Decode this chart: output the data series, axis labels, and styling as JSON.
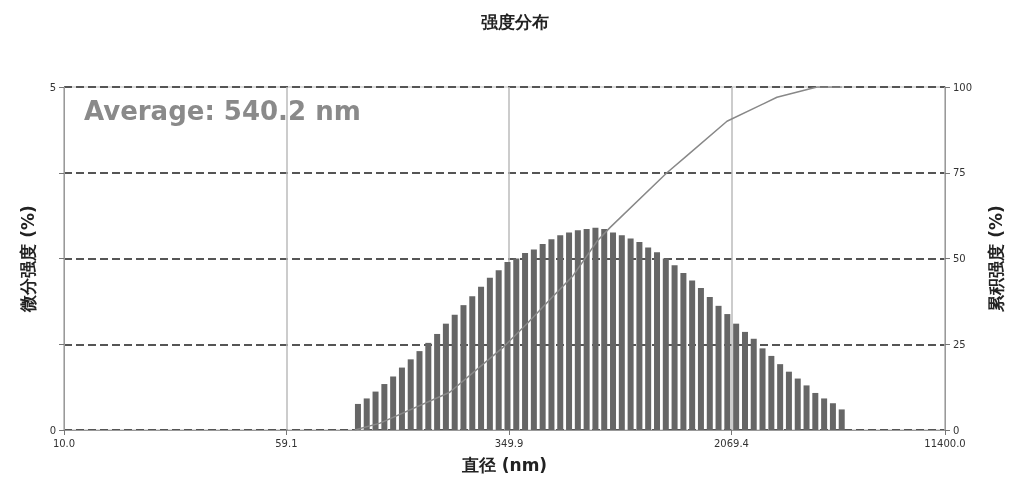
{
  "chart_data": {
    "type": "bar",
    "title": "强度分布",
    "xlabel": "直径 (nm)",
    "ylabel": "微分强度 (%)",
    "y2label": "累积强度 (%)",
    "annotations": [
      "Average: 540.2 nm"
    ],
    "log": "x",
    "grid": true,
    "legend": false,
    "xlim": [
      10,
      11400
    ],
    "xticks": [
      {
        "value": 10,
        "label": "10.0"
      },
      59.1,
      349.9,
      2069.4,
      {
        "value": 11400,
        "label": "11400.0"
      }
    ],
    "ylim": [
      0,
      5
    ],
    "yticks": [
      0,
      {
        "value": 1.25,
        "label": null
      },
      {
        "value": 2.5,
        "label": null
      },
      {
        "value": 3.75,
        "label": null
      },
      5
    ],
    "y2lim": [
      0,
      100
    ],
    "y2ticks": [
      0,
      25,
      50,
      75,
      100
    ],
    "series": [
      {
        "color": "#666666",
        "x": [
          104.7,
          112.3,
          120.5,
          129.3,
          138.7,
          148.8,
          159.6,
          171.2,
          183.7,
          197.1,
          211.4,
          226.8,
          243.3,
          261.0,
          280.0,
          300.4,
          322.3,
          345.8,
          370.9,
          397.9,
          426.9,
          458.0,
          491.3,
          527.1,
          565.5,
          606.6,
          650.8,
          698.2,
          749.0,
          803.5,
          862.0,
          924.8,
          992.1,
          1064,
          1142,
          1225,
          1314,
          1410,
          1512,
          1622,
          1741,
          1867,
          2003,
          2149,
          2306,
          2473,
          2653,
          2847,
          3054,
          3276,
          3515,
          3771,
          4045,
          4340,
          4656,
          4995
        ],
        "values": [
          0.38,
          0.46,
          0.56,
          0.67,
          0.78,
          0.91,
          1.03,
          1.15,
          1.27,
          1.4,
          1.55,
          1.68,
          1.82,
          1.95,
          2.09,
          2.22,
          2.33,
          2.45,
          2.5,
          2.58,
          2.63,
          2.71,
          2.78,
          2.84,
          2.88,
          2.91,
          2.93,
          2.95,
          2.93,
          2.88,
          2.84,
          2.79,
          2.74,
          2.66,
          2.59,
          2.5,
          2.4,
          2.29,
          2.18,
          2.07,
          1.94,
          1.81,
          1.69,
          1.55,
          1.43,
          1.33,
          1.19,
          1.08,
          0.96,
          0.85,
          0.75,
          0.65,
          0.54,
          0.46,
          0.39,
          0.3
        ]
      },
      {
        "type": "line",
        "axis": "y2",
        "color": "#888888",
        "x": [
          102,
          125,
          218,
          333,
          404,
          498,
          584,
          707,
          784,
          1236,
          1451,
          1997,
          2977,
          4100,
          5000
        ],
        "values": [
          0,
          2,
          11,
          24,
          31,
          39,
          45,
          55,
          59,
          75,
          80,
          90,
          97,
          100,
          100
        ]
      }
    ]
  }
}
